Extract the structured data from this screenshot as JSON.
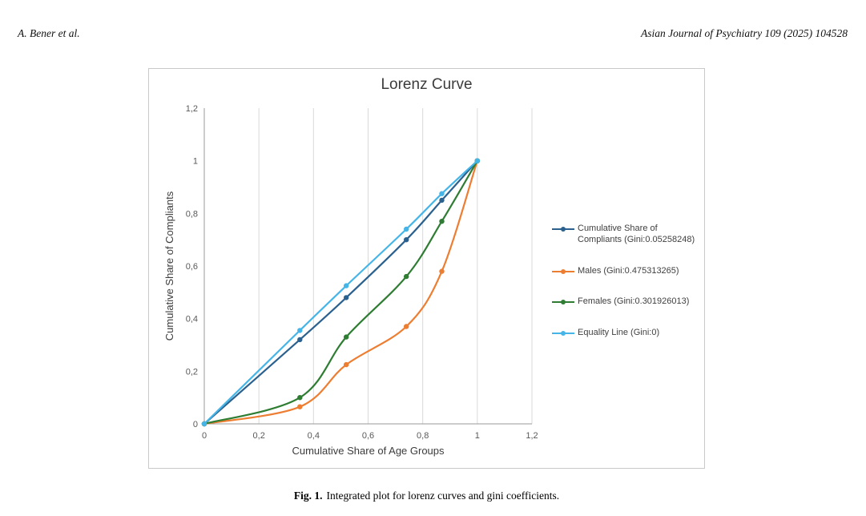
{
  "page": {
    "header_left": "A. Bener et al.",
    "header_right": "Asian Journal of Psychiatry 109 (2025) 104528"
  },
  "caption": {
    "label": "Fig. 1.",
    "text": "Integrated plot for lorenz curves and gini coefficients."
  },
  "chart_data": {
    "type": "line",
    "title": "Lorenz Curve",
    "xlabel": "Cumulative Share of Age Groups",
    "ylabel": "Cumulative Share of Compliants",
    "xlim": [
      0,
      1.2
    ],
    "ylim": [
      0,
      1.2
    ],
    "tick_interval": 0.2,
    "x_tick_labels": [
      "0",
      "0,2",
      "0,4",
      "0,6",
      "0,8",
      "1",
      "1,2"
    ],
    "y_tick_labels": [
      "0",
      "0,2",
      "0,4",
      "0,6",
      "0,8",
      "1",
      "1,2"
    ],
    "grid": "vertical",
    "legend_position": "right",
    "x": [
      0,
      0.35,
      0.52,
      0.74,
      0.87,
      1
    ],
    "series": [
      {
        "name": "Cumulative Share of Compliants (Gini:0.05258248)",
        "color": "#2b618e",
        "values": [
          0,
          0.32,
          0.48,
          0.7,
          0.85,
          1
        ]
      },
      {
        "name": "Males (Gini:0.475313265)",
        "color": "#ed7d31",
        "values": [
          0,
          0.065,
          0.225,
          0.37,
          0.58,
          1
        ]
      },
      {
        "name": "Females (Gini:0.301926013)",
        "color": "#2e7d32",
        "values": [
          0,
          0.1,
          0.33,
          0.56,
          0.77,
          1
        ]
      },
      {
        "name": "Equality Line (Gini:0)",
        "color": "#45b5e8",
        "values": [
          0,
          0.355,
          0.525,
          0.74,
          0.875,
          1
        ]
      }
    ]
  }
}
